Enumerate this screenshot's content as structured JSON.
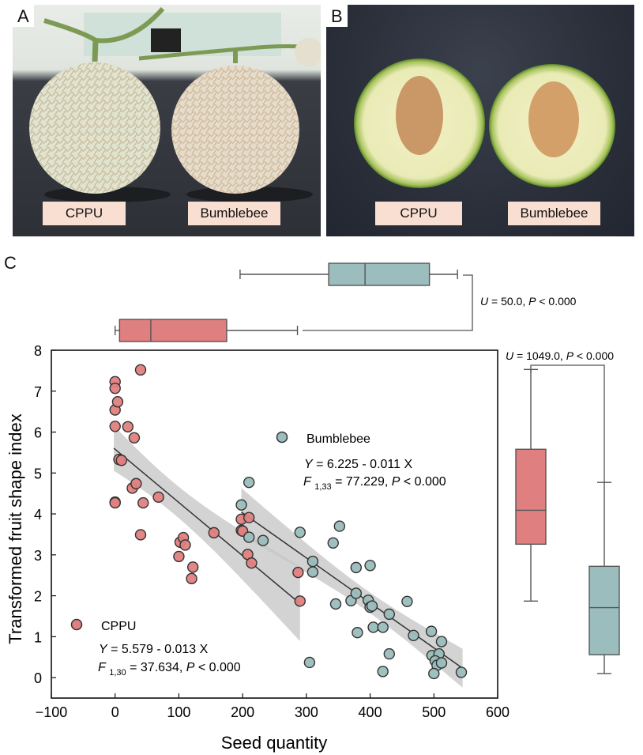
{
  "panels": {
    "A": {
      "letter": "A",
      "labels": [
        "CPPU",
        "Bumblebee"
      ]
    },
    "B": {
      "letter": "B",
      "labels": [
        "CPPU",
        "Bumblebee"
      ]
    },
    "C": {
      "letter": "C"
    }
  },
  "colors": {
    "cppu": "#e07f7f",
    "bumblebee": "#9bbdbd",
    "band": "#c8c8c8",
    "line": "#333333"
  },
  "chart_data": {
    "type": "scatter",
    "xlabel": "Seed quantity",
    "ylabel": "Transformed fruit shape index",
    "xlim": [
      -100,
      600
    ],
    "ylim": [
      -0.5,
      8
    ],
    "xticks": [
      "−100",
      "0",
      "100",
      "200",
      "300",
      "400",
      "500",
      "600"
    ],
    "xtick_values": [
      -100,
      0,
      100,
      200,
      300,
      400,
      500,
      600
    ],
    "yticks": [
      "0",
      "1",
      "2",
      "3",
      "4",
      "5",
      "6",
      "7",
      "8"
    ],
    "ytick_values": [
      0,
      1,
      2,
      3,
      4,
      5,
      6,
      7,
      8
    ],
    "series": [
      {
        "name": "CPPU",
        "equation": "Y = 5.579 - 0.013 X",
        "stats": {
          "F_label": "F",
          "F_df": "1,30",
          "F_value": "= 37.634, ",
          "P_label": "P",
          "P_value": " < 0.000"
        },
        "intercept": 5.579,
        "slope": -0.013,
        "fit_range": [
          -2,
          290
        ],
        "points": [
          [
            0,
            7.23
          ],
          [
            0,
            7.07
          ],
          [
            0,
            6.54
          ],
          [
            0,
            6.14
          ],
          [
            0,
            4.29
          ],
          [
            0,
            4.27
          ],
          [
            4,
            6.74
          ],
          [
            40,
            7.52
          ],
          [
            20,
            6.13
          ],
          [
            30,
            5.86
          ],
          [
            6,
            5.33
          ],
          [
            10,
            5.31
          ],
          [
            27,
            4.63
          ],
          [
            33,
            4.74
          ],
          [
            44,
            4.27
          ],
          [
            68,
            4.41
          ],
          [
            40,
            3.49
          ],
          [
            102,
            3.31
          ],
          [
            107,
            3.42
          ],
          [
            110,
            3.24
          ],
          [
            100,
            2.96
          ],
          [
            122,
            2.7
          ],
          [
            120,
            2.42
          ],
          [
            155,
            3.54
          ],
          [
            198,
            3.6
          ],
          [
            200,
            3.58
          ],
          [
            198,
            3.87
          ],
          [
            210,
            3.91
          ],
          [
            208,
            3.01
          ],
          [
            214,
            2.8
          ],
          [
            287,
            2.57
          ],
          [
            290,
            1.87
          ]
        ]
      },
      {
        "name": "Bumblebee",
        "equation": "Y = 6.225 - 0.011 X",
        "stats": {
          "F_label": "F",
          "F_df": "1,33",
          "F_value": "= 77.229, ",
          "P_label": "P",
          "P_value": " < 0.000"
        },
        "intercept": 6.225,
        "slope": -0.011,
        "fit_range": [
          198,
          545
        ],
        "points": [
          [
            210,
            4.77
          ],
          [
            198,
            4.22
          ],
          [
            210,
            3.43
          ],
          [
            232,
            3.35
          ],
          [
            290,
            3.55
          ],
          [
            310,
            2.84
          ],
          [
            310,
            2.58
          ],
          [
            342,
            3.29
          ],
          [
            352,
            3.7
          ],
          [
            378,
            2.69
          ],
          [
            400,
            2.74
          ],
          [
            305,
            0.37
          ],
          [
            346,
            1.8
          ],
          [
            370,
            1.88
          ],
          [
            378,
            2.06
          ],
          [
            397,
            1.89
          ],
          [
            400,
            1.72
          ],
          [
            403,
            1.75
          ],
          [
            380,
            1.1
          ],
          [
            405,
            1.23
          ],
          [
            420,
            1.23
          ],
          [
            430,
            1.55
          ],
          [
            458,
            1.86
          ],
          [
            468,
            1.03
          ],
          [
            430,
            0.58
          ],
          [
            420,
            0.15
          ],
          [
            496,
            1.13
          ],
          [
            512,
            0.88
          ],
          [
            497,
            0.54
          ],
          [
            508,
            0.58
          ],
          [
            502,
            0.41
          ],
          [
            505,
            0.3
          ],
          [
            512,
            0.36
          ],
          [
            500,
            0.1
          ],
          [
            543,
            0.13
          ]
        ]
      }
    ],
    "top_boxplot": {
      "axis": "Seed quantity",
      "test": {
        "U_label": "U",
        "U_value": " = 50.0, ",
        "P_label": "P",
        "P_value": " < 0.000"
      },
      "boxes": [
        {
          "name": "Bumblebee",
          "min": 196,
          "q1": 335,
          "median": 392,
          "q3": 493,
          "max": 537
        },
        {
          "name": "CPPU",
          "min": 0,
          "q1": 7,
          "median": 56,
          "q3": 175,
          "max": 286
        }
      ]
    },
    "right_boxplot": {
      "axis": "Transformed fruit shape index",
      "test": {
        "U_label": "U",
        "U_value": " = 1049.0, ",
        "P_label": "P",
        "P_value": " < 0.000"
      },
      "boxes": [
        {
          "name": "CPPU",
          "min": 1.87,
          "q1": 3.26,
          "median": 4.09,
          "q3": 5.58,
          "max": 7.53
        },
        {
          "name": "Bumblebee",
          "min": 0.1,
          "q1": 0.56,
          "median": 1.71,
          "q3": 2.72,
          "max": 4.77
        }
      ]
    }
  }
}
